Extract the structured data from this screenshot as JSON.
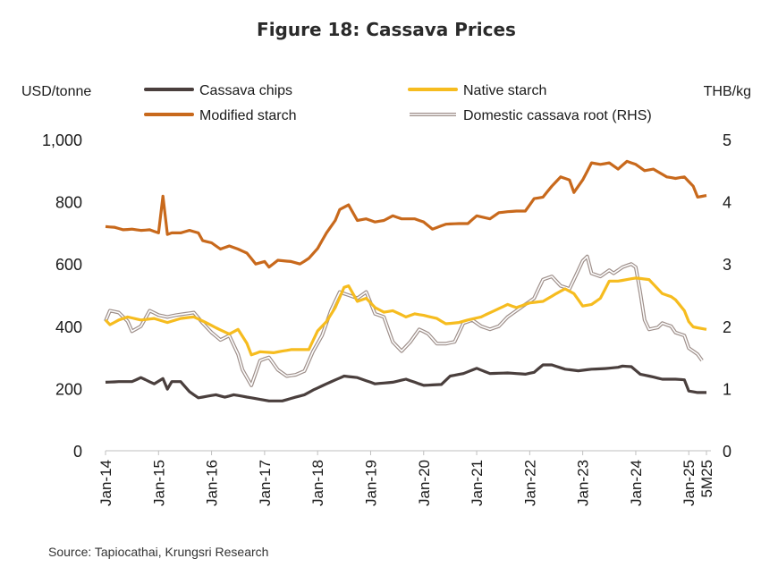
{
  "chart_data": {
    "type": "line",
    "title": "Figure 18: Cassava Prices",
    "left_axis": {
      "unit_label": "USD/tonne",
      "ylim": [
        0,
        1000
      ],
      "ticks": [
        0,
        200,
        400,
        600,
        800,
        1000
      ],
      "tick_labels": [
        "0",
        "200",
        "400",
        "600",
        "800",
        "1,000"
      ]
    },
    "right_axis": {
      "unit_label": "THB/kg",
      "ylim": [
        0,
        5
      ],
      "ticks": [
        0,
        1,
        2,
        3,
        4,
        5
      ],
      "tick_labels": [
        "0",
        "1",
        "2",
        "3",
        "4",
        "5"
      ]
    },
    "x_axis": {
      "start": "Jan-14",
      "points": 137,
      "tick_labels": [
        "Jan-14",
        "Jan-15",
        "Jan-16",
        "Jan-17",
        "Jan-18",
        "Jan-19",
        "Jan-20",
        "Jan-21",
        "Jan-22",
        "Jan-23",
        "Jan-24",
        "Jan-25",
        "5M25"
      ],
      "tick_index": [
        0,
        12,
        24,
        36,
        48,
        60,
        72,
        84,
        96,
        108,
        120,
        132,
        136
      ]
    },
    "grid": false,
    "legend_placement": "top",
    "series": [
      {
        "name": "Cassava chips",
        "axis": "left",
        "color": "#4a3f3d",
        "style": "solid",
        "anchors": [
          [
            0,
            220
          ],
          [
            3,
            222
          ],
          [
            6,
            222
          ],
          [
            8,
            235
          ],
          [
            11,
            215
          ],
          [
            13,
            232
          ],
          [
            14,
            198
          ],
          [
            15,
            222
          ],
          [
            17,
            222
          ],
          [
            19,
            190
          ],
          [
            21,
            170
          ],
          [
            25,
            180
          ],
          [
            27,
            172
          ],
          [
            29,
            180
          ],
          [
            33,
            170
          ],
          [
            37,
            160
          ],
          [
            40,
            160
          ],
          [
            45,
            180
          ],
          [
            47,
            195
          ],
          [
            50,
            215
          ],
          [
            54,
            240
          ],
          [
            57,
            235
          ],
          [
            61,
            215
          ],
          [
            65,
            220
          ],
          [
            68,
            230
          ],
          [
            72,
            210
          ],
          [
            76,
            213
          ],
          [
            78,
            240
          ],
          [
            81,
            248
          ],
          [
            84,
            265
          ],
          [
            87,
            248
          ],
          [
            91,
            250
          ],
          [
            95,
            246
          ],
          [
            97,
            252
          ],
          [
            99,
            276
          ],
          [
            101,
            276
          ],
          [
            104,
            262
          ],
          [
            107,
            257
          ],
          [
            110,
            262
          ],
          [
            113,
            264
          ],
          [
            116,
            268
          ],
          [
            117,
            272
          ],
          [
            119,
            270
          ],
          [
            121,
            246
          ],
          [
            123,
            240
          ],
          [
            126,
            230
          ],
          [
            129,
            230
          ],
          [
            131,
            228
          ],
          [
            132,
            192
          ],
          [
            134,
            187
          ],
          [
            136,
            187
          ]
        ]
      },
      {
        "name": "Native starch",
        "axis": "left",
        "color": "#f6bc1f",
        "style": "solid",
        "anchors": [
          [
            0,
            420
          ],
          [
            1,
            405
          ],
          [
            3,
            420
          ],
          [
            5,
            430
          ],
          [
            8,
            420
          ],
          [
            11,
            425
          ],
          [
            14,
            412
          ],
          [
            17,
            425
          ],
          [
            20,
            430
          ],
          [
            23,
            410
          ],
          [
            25,
            395
          ],
          [
            28,
            375
          ],
          [
            30,
            390
          ],
          [
            32,
            345
          ],
          [
            33,
            308
          ],
          [
            35,
            318
          ],
          [
            38,
            315
          ],
          [
            42,
            325
          ],
          [
            46,
            325
          ],
          [
            48,
            385
          ],
          [
            50,
            415
          ],
          [
            52,
            460
          ],
          [
            54,
            525
          ],
          [
            55,
            530
          ],
          [
            57,
            480
          ],
          [
            59,
            490
          ],
          [
            61,
            460
          ],
          [
            63,
            445
          ],
          [
            65,
            450
          ],
          [
            68,
            430
          ],
          [
            70,
            440
          ],
          [
            72,
            435
          ],
          [
            75,
            425
          ],
          [
            77,
            408
          ],
          [
            80,
            412
          ],
          [
            82,
            420
          ],
          [
            85,
            430
          ],
          [
            88,
            450
          ],
          [
            91,
            470
          ],
          [
            93,
            460
          ],
          [
            96,
            475
          ],
          [
            99,
            480
          ],
          [
            102,
            505
          ],
          [
            104,
            520
          ],
          [
            106,
            505
          ],
          [
            108,
            465
          ],
          [
            110,
            470
          ],
          [
            112,
            490
          ],
          [
            114,
            545
          ],
          [
            116,
            545
          ],
          [
            118,
            550
          ],
          [
            120,
            555
          ],
          [
            123,
            550
          ],
          [
            125,
            520
          ],
          [
            126,
            505
          ],
          [
            128,
            495
          ],
          [
            129,
            485
          ],
          [
            131,
            450
          ],
          [
            132,
            415
          ],
          [
            133,
            398
          ],
          [
            134,
            395
          ],
          [
            136,
            390
          ]
        ]
      },
      {
        "name": "Modified starch",
        "axis": "left",
        "color": "#c8691c",
        "style": "solid",
        "anchors": [
          [
            0,
            720
          ],
          [
            2,
            718
          ],
          [
            4,
            710
          ],
          [
            6,
            712
          ],
          [
            8,
            708
          ],
          [
            10,
            710
          ],
          [
            12,
            700
          ],
          [
            13,
            818
          ],
          [
            14,
            695
          ],
          [
            15,
            700
          ],
          [
            17,
            700
          ],
          [
            19,
            708
          ],
          [
            21,
            700
          ],
          [
            22,
            675
          ],
          [
            24,
            668
          ],
          [
            26,
            648
          ],
          [
            28,
            658
          ],
          [
            30,
            648
          ],
          [
            32,
            635
          ],
          [
            34,
            600
          ],
          [
            36,
            608
          ],
          [
            37,
            590
          ],
          [
            39,
            612
          ],
          [
            42,
            608
          ],
          [
            44,
            600
          ],
          [
            46,
            618
          ],
          [
            48,
            650
          ],
          [
            50,
            700
          ],
          [
            52,
            740
          ],
          [
            53,
            775
          ],
          [
            55,
            790
          ],
          [
            57,
            740
          ],
          [
            59,
            745
          ],
          [
            61,
            735
          ],
          [
            63,
            740
          ],
          [
            65,
            755
          ],
          [
            67,
            745
          ],
          [
            70,
            745
          ],
          [
            72,
            735
          ],
          [
            74,
            712
          ],
          [
            77,
            728
          ],
          [
            80,
            730
          ],
          [
            82,
            730
          ],
          [
            84,
            755
          ],
          [
            87,
            745
          ],
          [
            89,
            765
          ],
          [
            91,
            768
          ],
          [
            93,
            770
          ],
          [
            95,
            770
          ],
          [
            97,
            810
          ],
          [
            99,
            815
          ],
          [
            101,
            850
          ],
          [
            103,
            880
          ],
          [
            105,
            870
          ],
          [
            106,
            830
          ],
          [
            108,
            870
          ],
          [
            110,
            925
          ],
          [
            112,
            920
          ],
          [
            114,
            925
          ],
          [
            116,
            905
          ],
          [
            118,
            930
          ],
          [
            120,
            920
          ],
          [
            122,
            900
          ],
          [
            124,
            905
          ],
          [
            127,
            880
          ],
          [
            129,
            875
          ],
          [
            131,
            880
          ],
          [
            133,
            850
          ],
          [
            134,
            815
          ],
          [
            136,
            820
          ]
        ]
      },
      {
        "name": "Domestic cassava root (RHS)",
        "axis": "right",
        "color": "#9e8f8a",
        "style": "double",
        "anchors": [
          [
            0,
            2.08
          ],
          [
            1,
            2.25
          ],
          [
            3,
            2.22
          ],
          [
            5,
            2.08
          ],
          [
            6,
            1.92
          ],
          [
            8,
            2.0
          ],
          [
            10,
            2.25
          ],
          [
            12,
            2.18
          ],
          [
            14,
            2.15
          ],
          [
            16,
            2.18
          ],
          [
            18,
            2.2
          ],
          [
            20,
            2.22
          ],
          [
            22,
            2.05
          ],
          [
            24,
            1.9
          ],
          [
            26,
            1.78
          ],
          [
            28,
            1.85
          ],
          [
            30,
            1.55
          ],
          [
            31,
            1.3
          ],
          [
            33,
            1.05
          ],
          [
            35,
            1.45
          ],
          [
            37,
            1.5
          ],
          [
            39,
            1.3
          ],
          [
            41,
            1.2
          ],
          [
            43,
            1.22
          ],
          [
            45,
            1.28
          ],
          [
            47,
            1.6
          ],
          [
            49,
            1.85
          ],
          [
            51,
            2.25
          ],
          [
            53,
            2.55
          ],
          [
            55,
            2.5
          ],
          [
            57,
            2.45
          ],
          [
            59,
            2.55
          ],
          [
            61,
            2.2
          ],
          [
            63,
            2.15
          ],
          [
            65,
            1.75
          ],
          [
            67,
            1.6
          ],
          [
            69,
            1.75
          ],
          [
            71,
            1.95
          ],
          [
            73,
            1.88
          ],
          [
            75,
            1.72
          ],
          [
            77,
            1.72
          ],
          [
            79,
            1.75
          ],
          [
            81,
            2.05
          ],
          [
            83,
            2.1
          ],
          [
            85,
            2.0
          ],
          [
            87,
            1.95
          ],
          [
            89,
            2.0
          ],
          [
            91,
            2.15
          ],
          [
            93,
            2.25
          ],
          [
            95,
            2.35
          ],
          [
            97,
            2.45
          ],
          [
            99,
            2.75
          ],
          [
            101,
            2.8
          ],
          [
            103,
            2.65
          ],
          [
            105,
            2.6
          ],
          [
            107,
            2.9
          ],
          [
            108,
            3.05
          ],
          [
            109,
            3.12
          ],
          [
            110,
            2.85
          ],
          [
            112,
            2.8
          ],
          [
            114,
            2.9
          ],
          [
            115,
            2.85
          ],
          [
            117,
            2.95
          ],
          [
            119,
            3.0
          ],
          [
            120,
            2.95
          ],
          [
            121,
            2.55
          ],
          [
            122,
            2.1
          ],
          [
            123,
            1.95
          ],
          [
            125,
            1.98
          ],
          [
            126,
            2.05
          ],
          [
            128,
            2.0
          ],
          [
            129,
            1.9
          ],
          [
            131,
            1.85
          ],
          [
            132,
            1.65
          ],
          [
            133,
            1.6
          ],
          [
            134,
            1.55
          ],
          [
            135,
            1.45
          ]
        ]
      }
    ]
  },
  "source": "Source: Tapiocathai, Krungsri Research"
}
